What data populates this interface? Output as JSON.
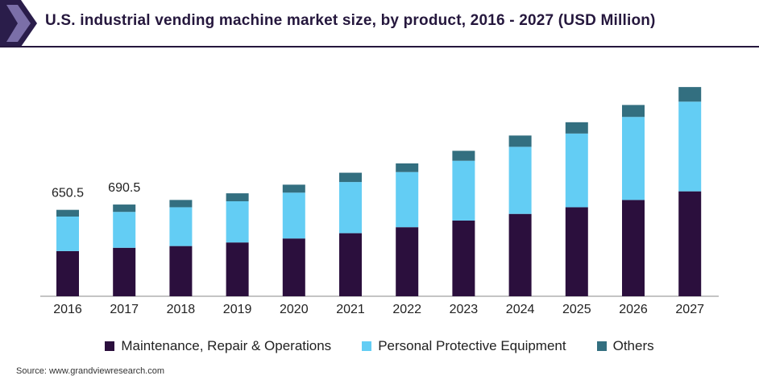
{
  "header": {
    "title": "U.S. industrial vending machine market size, by product, 2016 - 2027 (USD Million)"
  },
  "colors": {
    "accent_dark": "#2a1d4a",
    "accent_light": "#7b6fa8",
    "maintenance": "#2b0f3d",
    "ppe": "#63cdf4",
    "others": "#336f80"
  },
  "chart_data": {
    "type": "bar",
    "stacked": true,
    "categories": [
      "2016",
      "2017",
      "2018",
      "2019",
      "2020",
      "2021",
      "2022",
      "2023",
      "2024",
      "2025",
      "2026",
      "2027"
    ],
    "series": [
      {
        "name": "Maintenance, Repair & Operations",
        "color": "#2b0f3d",
        "values": [
          340,
          365,
          378,
          405,
          435,
          475,
          520,
          570,
          620,
          670,
          725,
          790
        ]
      },
      {
        "name": "Personal Protective Equipment",
        "color": "#63cdf4",
        "values": [
          260,
          270,
          292,
          310,
          345,
          385,
          415,
          450,
          505,
          555,
          625,
          675
        ]
      },
      {
        "name": "Others",
        "color": "#336f80",
        "values": [
          50.5,
          55.5,
          55,
          60,
          60,
          70,
          65,
          75,
          85,
          85,
          90,
          110
        ]
      }
    ],
    "data_labels": [
      {
        "category": "2016",
        "text": "650.5"
      },
      {
        "category": "2017",
        "text": "690.5"
      }
    ],
    "xlabel": "",
    "ylabel": "",
    "ylim": [
      0,
      1600
    ],
    "grid": false,
    "legend": "bottom"
  },
  "source": "Source: www.grandviewresearch.com"
}
